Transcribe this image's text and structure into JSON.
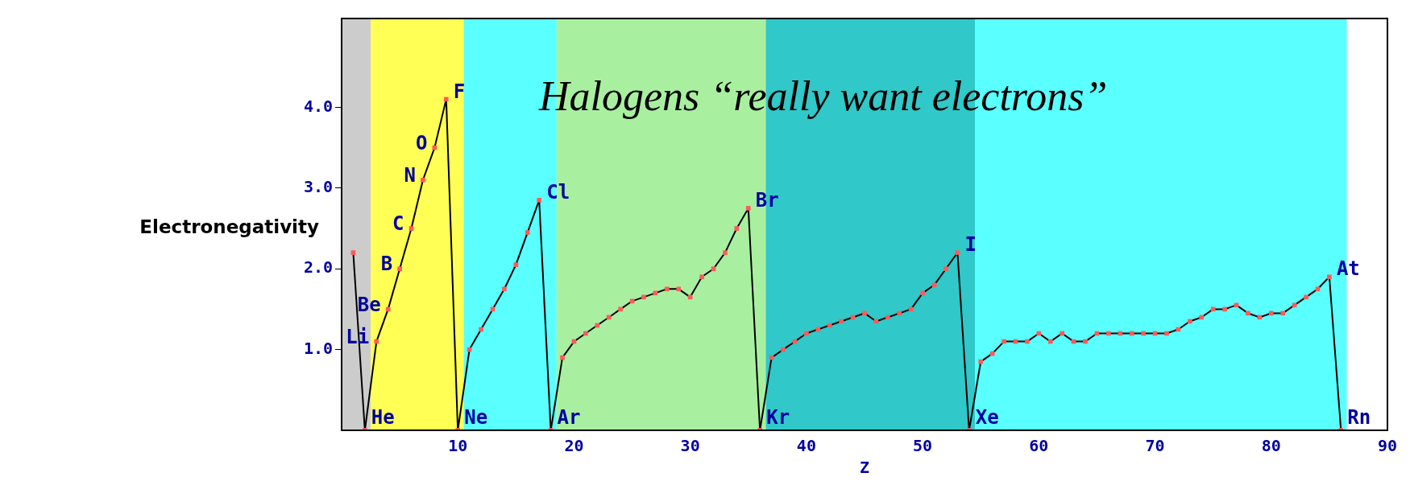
{
  "chart_data": {
    "type": "line",
    "xlabel": "Z",
    "ylabel": "Electronegativity",
    "annotations": [
      "Halogens “really want electrons”",
      {
        "text": "He",
        "x": 2,
        "y": 0
      },
      {
        "text": "Li",
        "x": 3,
        "y": 1.1
      },
      {
        "text": "Be",
        "x": 4,
        "y": 1.5
      },
      {
        "text": "B",
        "x": 5,
        "y": 2.0
      },
      {
        "text": "C",
        "x": 6,
        "y": 2.5
      },
      {
        "text": "N",
        "x": 7,
        "y": 3.1
      },
      {
        "text": "O",
        "x": 8,
        "y": 3.5
      },
      {
        "text": "F",
        "x": 9,
        "y": 4.1
      },
      {
        "text": "Ne",
        "x": 10,
        "y": 0
      },
      {
        "text": "Cl",
        "x": 17,
        "y": 2.85
      },
      {
        "text": "Ar",
        "x": 18,
        "y": 0
      },
      {
        "text": "Br",
        "x": 35,
        "y": 2.75
      },
      {
        "text": "Kr",
        "x": 36,
        "y": 0
      },
      {
        "text": "I",
        "x": 53,
        "y": 2.2
      },
      {
        "text": "Xe",
        "x": 54,
        "y": 0
      },
      {
        "text": "At",
        "x": 85,
        "y": 1.9
      },
      {
        "text": "Rn",
        "x": 86,
        "y": 0
      }
    ],
    "x": [
      1,
      2,
      3,
      4,
      5,
      6,
      7,
      8,
      9,
      10,
      11,
      12,
      13,
      14,
      15,
      16,
      17,
      18,
      19,
      20,
      21,
      22,
      23,
      24,
      25,
      26,
      27,
      28,
      29,
      30,
      31,
      32,
      33,
      34,
      35,
      36,
      37,
      38,
      39,
      40,
      41,
      42,
      43,
      44,
      45,
      46,
      47,
      48,
      49,
      50,
      51,
      52,
      53,
      54,
      55,
      56,
      57,
      58,
      59,
      60,
      61,
      62,
      63,
      64,
      65,
      66,
      67,
      68,
      69,
      70,
      71,
      72,
      73,
      74,
      75,
      76,
      77,
      78,
      79,
      80,
      81,
      82,
      83,
      84,
      85,
      86
    ],
    "series": [
      {
        "color": "#000000",
        "values": [
          2.2,
          0,
          1.1,
          1.5,
          2.0,
          2.5,
          3.1,
          3.5,
          4.1,
          0,
          1.0,
          1.25,
          1.5,
          1.75,
          2.05,
          2.45,
          2.85,
          0,
          0.9,
          1.1,
          1.2,
          1.3,
          1.4,
          1.5,
          1.6,
          1.65,
          1.7,
          1.75,
          1.75,
          1.65,
          1.9,
          2.0,
          2.2,
          2.5,
          2.75,
          0,
          0.9,
          1.0,
          1.1,
          1.2,
          1.25,
          1.3,
          1.35,
          1.4,
          1.45,
          1.35,
          1.4,
          1.45,
          1.5,
          1.7,
          1.8,
          2.0,
          2.2,
          0,
          0.85,
          0.95,
          1.1,
          1.1,
          1.1,
          1.2,
          1.1,
          1.2,
          1.1,
          1.1,
          1.2,
          1.2,
          1.2,
          1.2,
          1.2,
          1.2,
          1.2,
          1.25,
          1.35,
          1.4,
          1.5,
          1.5,
          1.55,
          1.45,
          1.4,
          1.45,
          1.45,
          1.55,
          1.65,
          1.75,
          1.9,
          0
        ]
      }
    ],
    "xlim": [
      0,
      90
    ],
    "xticks": [
      10,
      20,
      30,
      40,
      50,
      60,
      70,
      80,
      90
    ],
    "ylim": [
      0,
      5.1
    ],
    "yticks": [
      {
        "value": 1,
        "label": "1.0"
      },
      {
        "value": 2,
        "label": "2.0"
      },
      {
        "value": 3,
        "label": "3.0"
      },
      {
        "value": 4,
        "label": "4.0"
      }
    ],
    "bands": [
      {
        "axis": "x",
        "from": 0,
        "to": 2.5,
        "color": "#cccccc"
      },
      {
        "axis": "x",
        "from": 2.5,
        "to": 10.5,
        "color": "#ffff55"
      },
      {
        "axis": "x",
        "from": 10.5,
        "to": 18.5,
        "color": "#5affff"
      },
      {
        "axis": "x",
        "from": 18.5,
        "to": 36.5,
        "color": "#a8f0a0"
      },
      {
        "axis": "x",
        "from": 36.5,
        "to": 54.5,
        "color": "#30c8c8"
      },
      {
        "axis": "x",
        "from": 54.5,
        "to": 86.5,
        "color": "#5affff"
      }
    ],
    "marker": "square",
    "line_style": "solid",
    "grid": false,
    "legend": false
  }
}
